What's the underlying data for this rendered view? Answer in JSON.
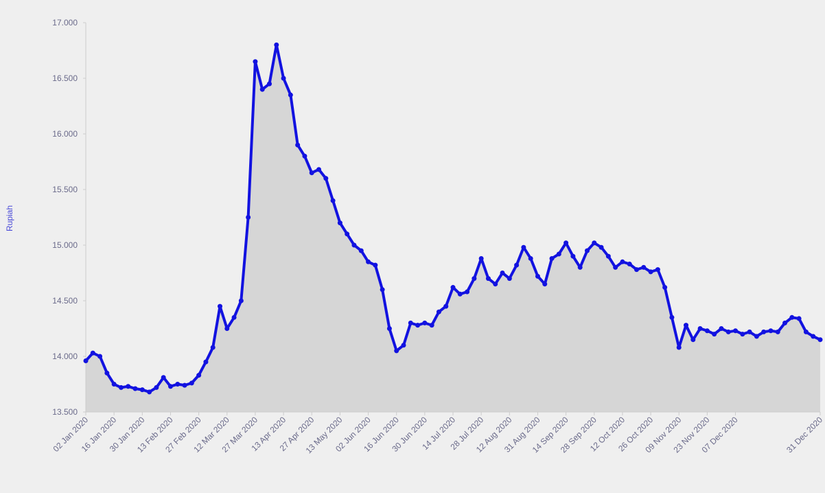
{
  "chart_data": {
    "type": "area",
    "y_label": "Rupiah",
    "categories": [
      "02 Jan 2020",
      null,
      null,
      null,
      "16 Jan 2020",
      null,
      null,
      null,
      "30 Jan 2020",
      null,
      null,
      null,
      "13 Feb 2020",
      null,
      null,
      null,
      "27 Feb 2020",
      null,
      null,
      null,
      "12 Mar 2020",
      null,
      null,
      null,
      "27 Mar 2020",
      null,
      null,
      null,
      "13 Apr 2020",
      null,
      null,
      null,
      "27 Apr 2020",
      null,
      null,
      null,
      "13 May 2020",
      null,
      null,
      null,
      "02 Jun 2020",
      null,
      null,
      null,
      "16 Jun 2020",
      null,
      null,
      null,
      "30 Jun 2020",
      null,
      null,
      null,
      "14 Jul 2020",
      null,
      null,
      null,
      "28 Jul 2020",
      null,
      null,
      null,
      "12 Aug 2020",
      null,
      null,
      null,
      "31 Aug 2020",
      null,
      null,
      null,
      "14 Sep 2020",
      null,
      null,
      null,
      "28 Sep 2020",
      null,
      null,
      null,
      "12 Oct 2020",
      null,
      null,
      null,
      "26 Oct 2020",
      null,
      null,
      null,
      "09 Nov 2020",
      null,
      null,
      null,
      "23 Nov 2020",
      null,
      null,
      null,
      "07 Dec 2020",
      null,
      null,
      null,
      null,
      null,
      null,
      null,
      null,
      null,
      null,
      null,
      "31 Dec 2020"
    ],
    "values": [
      13960,
      14030,
      14000,
      13850,
      13750,
      13720,
      13730,
      13710,
      13700,
      13680,
      13720,
      13810,
      13730,
      13750,
      13740,
      13760,
      13830,
      13950,
      14080,
      14450,
      14250,
      14350,
      14500,
      15250,
      16650,
      16400,
      16450,
      16800,
      16500,
      16350,
      15900,
      15800,
      15650,
      15680,
      15600,
      15400,
      15200,
      15100,
      15000,
      14950,
      14850,
      14820,
      14600,
      14250,
      14050,
      14100,
      14300,
      14280,
      14300,
      14280,
      14400,
      14450,
      14620,
      14560,
      14580,
      14700,
      14880,
      14700,
      14650,
      14750,
      14700,
      14820,
      14980,
      14880,
      14720,
      14650,
      14880,
      14920,
      15020,
      14900,
      14800,
      14950,
      15020,
      14980,
      14900,
      14800,
      14850,
      14830,
      14780,
      14800,
      14760,
      14780,
      14620,
      14350,
      14080,
      14280,
      14150,
      14250,
      14230,
      14200,
      14250,
      14220,
      14230,
      14200,
      14220,
      14180,
      14220,
      14230,
      14220,
      14300,
      14350,
      14340,
      14220,
      14180,
      14150
    ],
    "color": "#1212e0",
    "fill_color": "#d6d6d6",
    "markers": true,
    "grid": false,
    "ylim": [
      13500,
      17000
    ],
    "yticks": [
      {
        "value": 13500,
        "label": "13.500"
      },
      {
        "value": 14000,
        "label": "14.000"
      },
      {
        "value": 14500,
        "label": "14.500"
      },
      {
        "value": 15000,
        "label": "15.000"
      },
      {
        "value": 15500,
        "label": "15.500"
      },
      {
        "value": 16000,
        "label": "16.000"
      },
      {
        "value": 16500,
        "label": "16.500"
      },
      {
        "value": 17000,
        "label": "17.000"
      }
    ]
  }
}
